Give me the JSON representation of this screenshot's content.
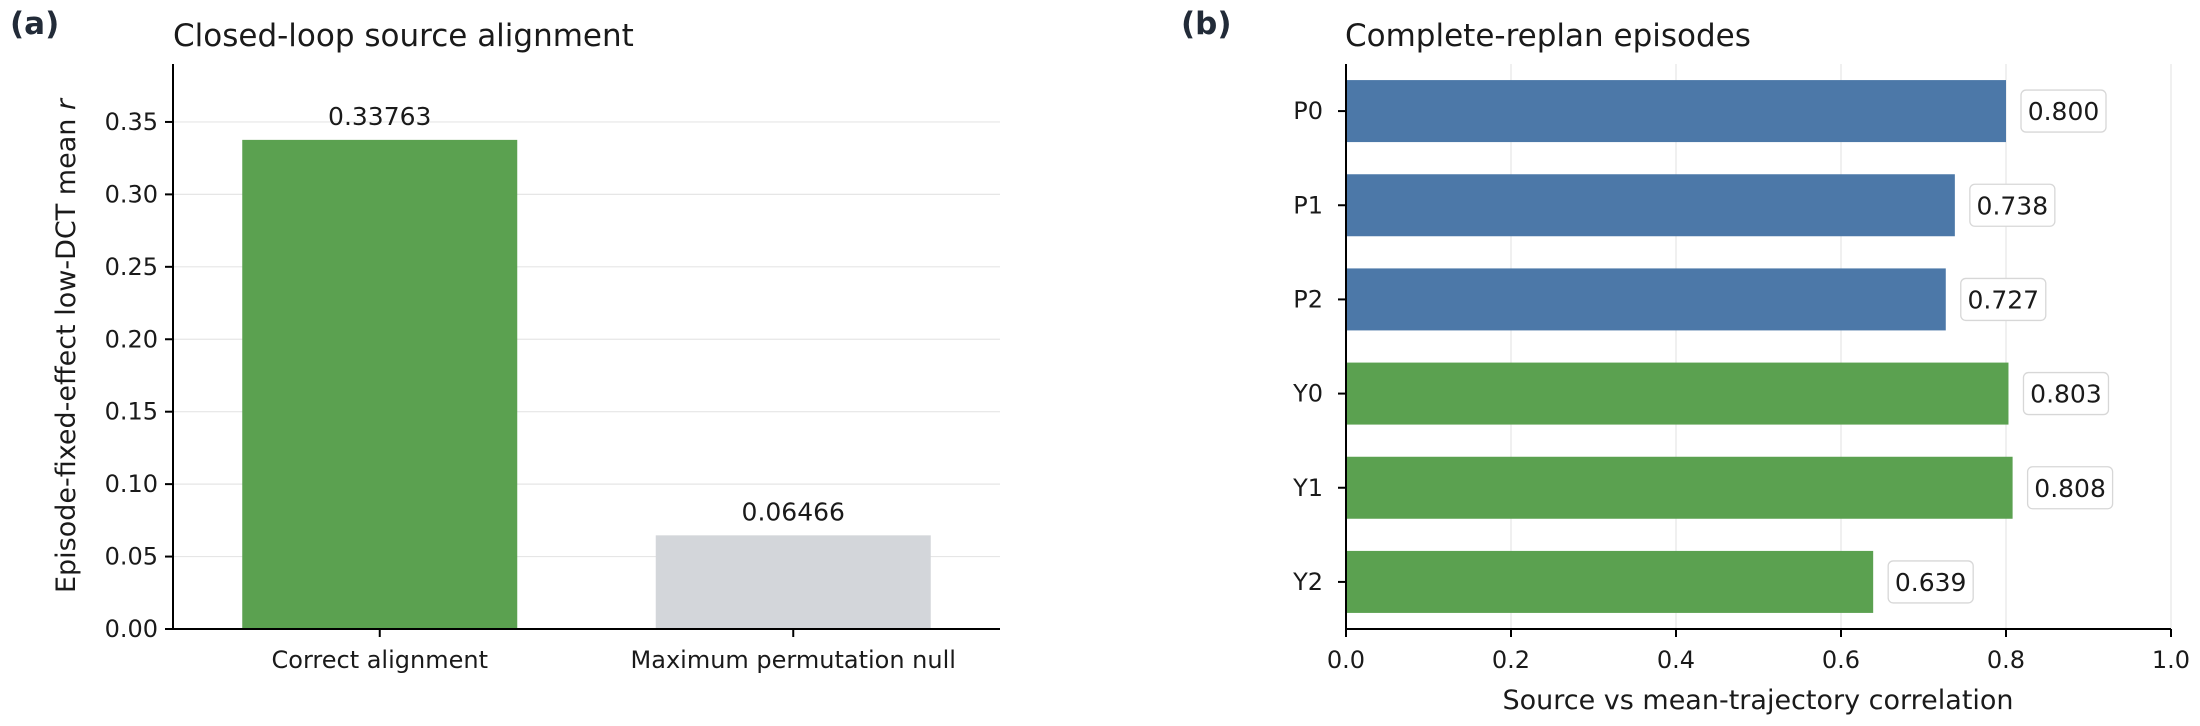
{
  "chart_data": [
    {
      "panel": "(a)",
      "type": "bar",
      "title": "Closed-loop source alignment",
      "xlabel": "",
      "ylabel": "Episode-fixed-effect low-DCT mean r",
      "ylabel_main": "Episode-fixed-effect low-DCT mean ",
      "ylabel_italic": "r",
      "categories": [
        "Correct alignment",
        "Maximum permutation null"
      ],
      "values": [
        0.33763,
        0.06466
      ],
      "value_labels": [
        "0.33763",
        "0.06466"
      ],
      "colors": [
        "#5ba150",
        "#d3d6da"
      ],
      "ylim": [
        0,
        0.39
      ],
      "yticks": [
        0.0,
        0.05,
        0.1,
        0.15,
        0.2,
        0.25,
        0.3,
        0.35
      ],
      "ytick_labels": [
        "0.00",
        "0.05",
        "0.10",
        "0.15",
        "0.20",
        "0.25",
        "0.30",
        "0.35"
      ],
      "grid": "y"
    },
    {
      "panel": "(b)",
      "type": "bar",
      "orientation": "horizontal",
      "title": "Complete-replan episodes",
      "xlabel": "Source vs mean-trajectory correlation",
      "ylabel": "",
      "categories": [
        "P0",
        "P1",
        "P2",
        "Y0",
        "Y1",
        "Y2"
      ],
      "values": [
        0.8,
        0.738,
        0.727,
        0.803,
        0.808,
        0.639
      ],
      "value_labels": [
        "0.800",
        "0.738",
        "0.727",
        "0.803",
        "0.808",
        "0.639"
      ],
      "colors": [
        "#4c78a8",
        "#4c78a8",
        "#4c78a8",
        "#5ba150",
        "#5ba150",
        "#5ba150"
      ],
      "xlim": [
        0,
        1.0
      ],
      "xticks": [
        0.0,
        0.2,
        0.4,
        0.6,
        0.8,
        1.0
      ],
      "xtick_labels": [
        "0.0",
        "0.2",
        "0.4",
        "0.6",
        "0.8",
        "1.0"
      ],
      "grid": "x"
    }
  ]
}
